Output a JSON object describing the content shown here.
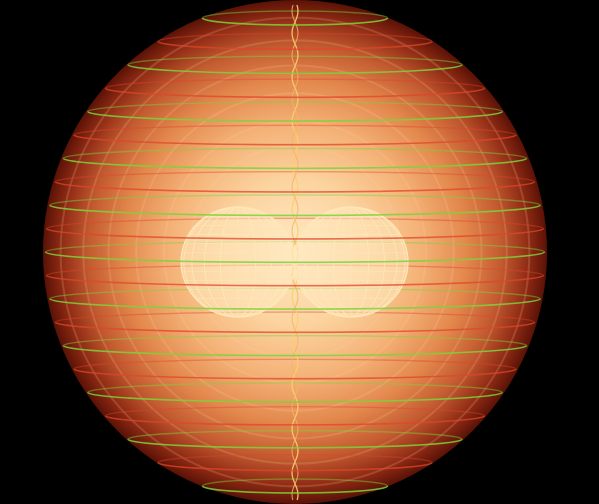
{
  "image": {
    "subject": "sphere-with-rings-and-inner-torus"
  },
  "colors": {
    "background": "#000000",
    "sphere_core": "#ffe9c4",
    "sphere_mid": "#f2a35e",
    "sphere_edge": "#7a1a0c",
    "ring_green": "#7dd23a",
    "ring_red": "#e0452a",
    "ring_orange": "#f7b06a",
    "torus_mesh": "#ffe8b8",
    "axis": "#f6d26a"
  }
}
